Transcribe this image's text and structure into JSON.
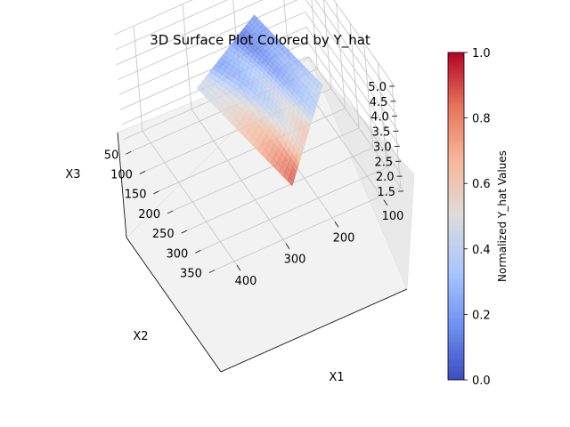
{
  "chart_data": {
    "type": "surface3d",
    "title": "3D Surface Plot Colored by Y_hat",
    "x_axis": {
      "label": "X1",
      "ticks": [
        100,
        200,
        300,
        400
      ],
      "range": [
        60,
        440
      ]
    },
    "y_axis": {
      "label": "X2",
      "ticks": [
        50,
        100,
        150,
        200,
        250,
        300,
        350
      ],
      "range": [
        20,
        360
      ]
    },
    "z_axis": {
      "label": "X3",
      "ticks": [
        1.5,
        2.0,
        2.5,
        3.0,
        3.5,
        4.0,
        4.5,
        5.0
      ],
      "range": [
        1.5,
        5.0
      ]
    },
    "colorbar": {
      "label": "Normalized Y_hat Values",
      "ticks": [
        0.0,
        0.2,
        0.4,
        0.6,
        0.8,
        1.0
      ],
      "tick_labels": [
        "0.0",
        "0.2",
        "0.4",
        "0.6",
        "0.8",
        "1.0"
      ],
      "colormap": "coolwarm",
      "colormap_stops": [
        "#3b4cc0",
        "#6f92f3",
        "#aac7fd",
        "#dddcdc",
        "#f7b89c",
        "#e7745b",
        "#b40426"
      ]
    },
    "surface_corners": [
      {
        "name": "left",
        "x1": 300,
        "x2": 50,
        "x3": 2.6
      },
      {
        "name": "top",
        "x1": 180,
        "x2": 60,
        "x3": 4.3
      },
      {
        "name": "right",
        "x1": 110,
        "x2": 170,
        "x3": 2.9
      },
      {
        "name": "bottom",
        "x1": 230,
        "x2": 260,
        "x3": 1.6
      }
    ],
    "grid": true
  }
}
